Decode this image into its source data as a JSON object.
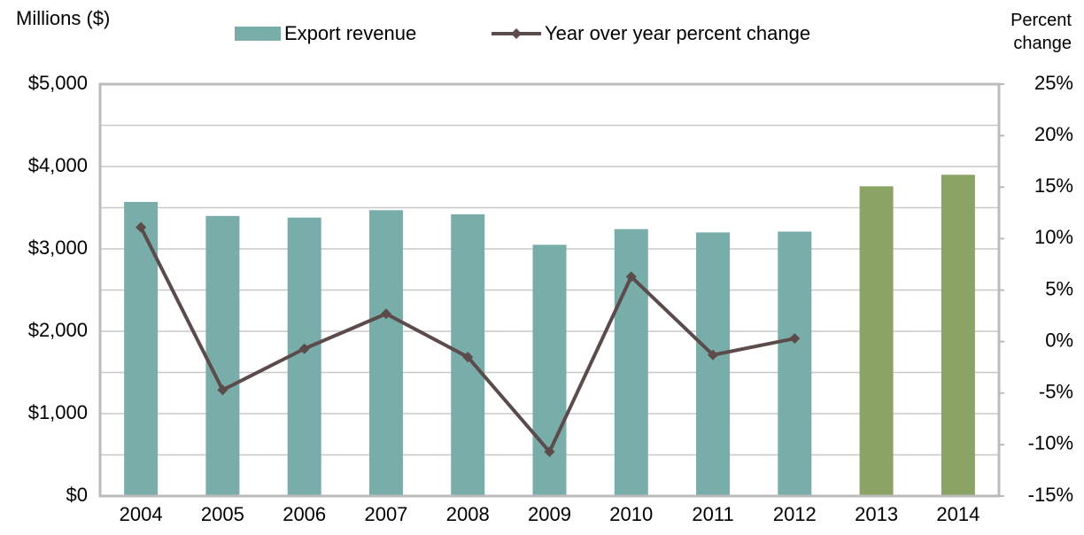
{
  "chart_data": {
    "type": "bar",
    "ylabel": "Millions ($)",
    "y2label": "Percent change",
    "categories": [
      "2004",
      "2005",
      "2006",
      "2007",
      "2008",
      "2009",
      "2010",
      "2011",
      "2012",
      "2013",
      "2014"
    ],
    "series": [
      {
        "name": "Export revenue",
        "type": "bar",
        "color": "#78ada9",
        "colors": [
          "#78ada9",
          "#78ada9",
          "#78ada9",
          "#78ada9",
          "#78ada9",
          "#78ada9",
          "#78ada9",
          "#78ada9",
          "#78ada9",
          "#8ba465",
          "#8ba465"
        ],
        "values": [
          3570,
          3400,
          3380,
          3470,
          3420,
          3050,
          3240,
          3200,
          3210,
          3760,
          3900
        ]
      },
      {
        "name": "Year over year percent change",
        "type": "line",
        "axis": "y2",
        "color": "#5b4b4b",
        "values": [
          11.1,
          -4.7,
          -0.7,
          2.7,
          -1.5,
          -10.7,
          6.3,
          -1.3,
          0.3,
          null,
          null
        ]
      }
    ],
    "ylim": [
      0,
      5000
    ],
    "yticks": [
      {
        "value": 0,
        "label": "$0"
      },
      {
        "value": 1000,
        "label": "$1,000"
      },
      {
        "value": 2000,
        "label": "$2,000"
      },
      {
        "value": 3000,
        "label": "$3,000"
      },
      {
        "value": 4000,
        "label": "$4,000"
      },
      {
        "value": 5000,
        "label": "$5,000"
      }
    ],
    "grid_lines": [
      0,
      500,
      1000,
      1500,
      2000,
      2500,
      3000,
      3500,
      4000,
      4500,
      5000
    ],
    "y2lim": [
      -15,
      25
    ],
    "y2ticks": [
      {
        "value": -15,
        "label": "-15%"
      },
      {
        "value": -10,
        "label": "-10%"
      },
      {
        "value": -5,
        "label": "-5%"
      },
      {
        "value": 0,
        "label": "0%"
      },
      {
        "value": 5,
        "label": "5%"
      },
      {
        "value": 10,
        "label": "10%"
      },
      {
        "value": 15,
        "label": "15%"
      },
      {
        "value": 20,
        "label": "20%"
      },
      {
        "value": 25,
        "label": "25%"
      }
    ],
    "grid": true,
    "legend": "top"
  }
}
